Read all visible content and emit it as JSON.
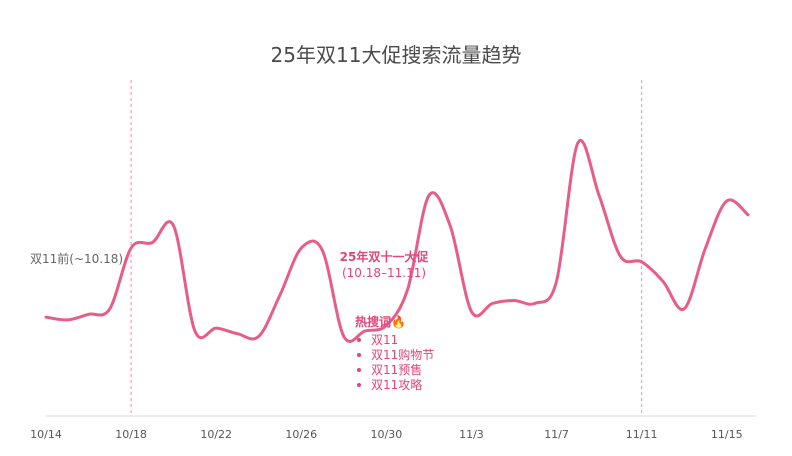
{
  "colors": {
    "line": "#e85d87",
    "accent": "#e0457b",
    "axis": "#d9d9d9",
    "marker": "#f08aa9"
  },
  "chart_data": {
    "type": "line",
    "title": "25年双11大促搜索流量趋势",
    "xlabel": "",
    "ylabel": "",
    "grid": false,
    "x_tick_labels": [
      "10/14",
      "10/18",
      "10/22",
      "10/26",
      "10/30",
      "11/3",
      "11/7",
      "11/11",
      "11/15"
    ],
    "x": [
      "10/14",
      "10/15",
      "10/16",
      "10/17",
      "10/18",
      "10/19",
      "10/20",
      "10/21",
      "10/22",
      "10/23",
      "10/24",
      "10/25",
      "10/26",
      "10/27",
      "10/28",
      "10/29",
      "10/30",
      "10/31",
      "11/1",
      "11/2",
      "11/3",
      "11/4",
      "11/5",
      "11/6",
      "11/7",
      "11/8",
      "11/9",
      "11/10",
      "11/11",
      "11/12",
      "11/13",
      "11/14",
      "11/15",
      "11/16"
    ],
    "values": [
      30,
      29,
      31,
      33,
      55,
      57,
      63,
      25,
      26,
      24,
      23,
      38,
      55,
      54,
      23,
      25,
      27,
      40,
      74,
      63,
      32,
      35,
      36,
      35,
      43,
      93,
      74,
      52,
      50,
      43,
      33,
      55,
      72,
      67
    ],
    "ylim": [
      0,
      110
    ],
    "markers": [
      {
        "x": "10/18",
        "label": "双11前(~10.18)"
      },
      {
        "x": "11/11",
        "label": ""
      }
    ],
    "annotations": {
      "period_title": "25年双十一大促",
      "period_range": "(10.18–11.11)",
      "hot_title": "热搜词🔥",
      "hot_words": [
        "双11",
        "双11购物节",
        "双11预售",
        "双11攻略"
      ]
    }
  }
}
